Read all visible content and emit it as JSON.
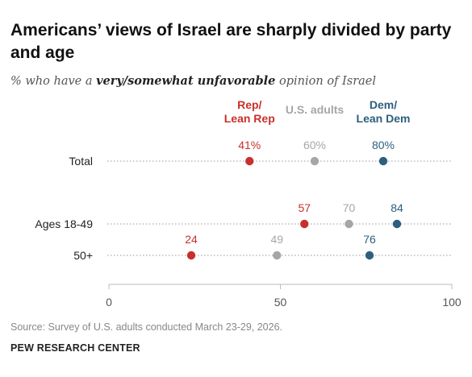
{
  "title": "Americans’ views of Israel are sharply divided by party and age",
  "subtitle": {
    "prefix": "% who have a ",
    "emphasis": "very/somewhat unfavorable",
    "suffix": " opinion of Israel"
  },
  "source": "Source: Survey of U.S. adults conducted March 23-29, 2026.",
  "credit": "PEW RESEARCH CENTER",
  "chart_data": {
    "type": "scatter",
    "xlim": [
      0,
      100
    ],
    "x_ticks": [
      0,
      50,
      100
    ],
    "x_tick_labels": [
      "0",
      "50",
      "100"
    ],
    "grid": false,
    "legend_placement": "top",
    "categories": [
      "Total",
      "Ages 18-49",
      "50+"
    ],
    "series": [
      {
        "name": "Rep/ Lean Rep",
        "legend_lines": [
          "Rep/",
          "Lean Rep"
        ],
        "color": "#c8302c",
        "values": [
          41,
          57,
          24
        ],
        "labels": [
          "41%",
          "57",
          "24"
        ]
      },
      {
        "name": "U.S. adults",
        "legend_lines": [
          "U.S. adults"
        ],
        "color": "#a6a6a6",
        "values": [
          60,
          70,
          49
        ],
        "labels": [
          "60%",
          "70",
          "49"
        ]
      },
      {
        "name": "Dem/ Lean Dem",
        "legend_lines": [
          "Dem/",
          "Lean Dem"
        ],
        "color": "#2d5f7e",
        "values": [
          80,
          84,
          76
        ],
        "labels": [
          "80%",
          "84",
          "76"
        ]
      }
    ]
  }
}
